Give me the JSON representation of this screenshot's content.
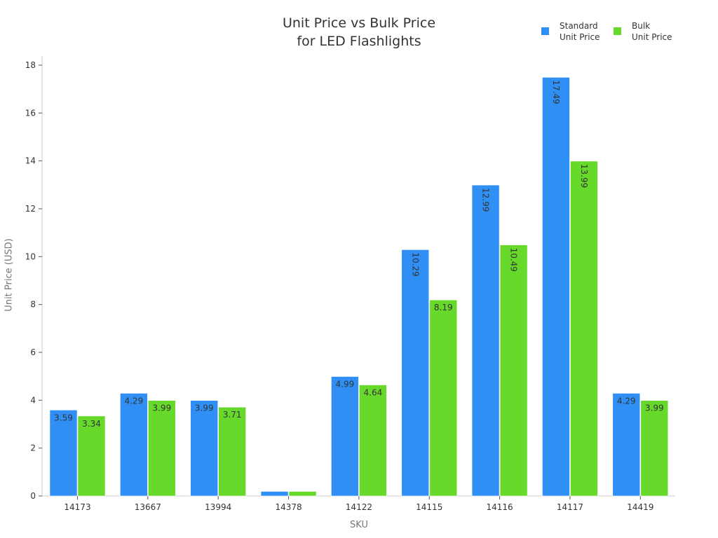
{
  "chart_data": {
    "type": "bar",
    "title": "Unit Price vs Bulk Price for LED Flashlights",
    "title_lines": [
      "Unit Price vs Bulk Price",
      "for LED Flashlights"
    ],
    "xlabel": "SKU",
    "ylabel": "Unit Price (USD)",
    "ylim": [
      0,
      18.4
    ],
    "yticks": [
      0,
      2,
      4,
      6,
      8,
      10,
      12,
      14,
      16,
      18
    ],
    "grid": false,
    "legend_position": "top-right",
    "categories": [
      "14173",
      "13667",
      "13994",
      "14378",
      "14122",
      "14115",
      "14116",
      "14117",
      "14419"
    ],
    "series": [
      {
        "name": "Standard Unit Price",
        "legend_lines": [
          "Standard",
          "Unit Price"
        ],
        "color": "#2f8ff5",
        "values": [
          3.59,
          4.29,
          3.99,
          0.19,
          4.99,
          10.29,
          12.99,
          17.49,
          4.29
        ],
        "labels": [
          "3.59",
          "4.29",
          "3.99",
          "",
          "4.99",
          "10.29",
          "12.99",
          "17.49",
          "4.29"
        ]
      },
      {
        "name": "Bulk Unit Price",
        "legend_lines": [
          "Bulk",
          "Unit Price"
        ],
        "color": "#66d92a",
        "values": [
          3.34,
          3.99,
          3.71,
          0.19,
          4.64,
          8.19,
          10.49,
          13.99,
          3.99
        ],
        "labels": [
          "3.34",
          "3.99",
          "3.71",
          "",
          "4.64",
          "8.19",
          "10.49",
          "13.99",
          "3.99"
        ]
      }
    ]
  }
}
